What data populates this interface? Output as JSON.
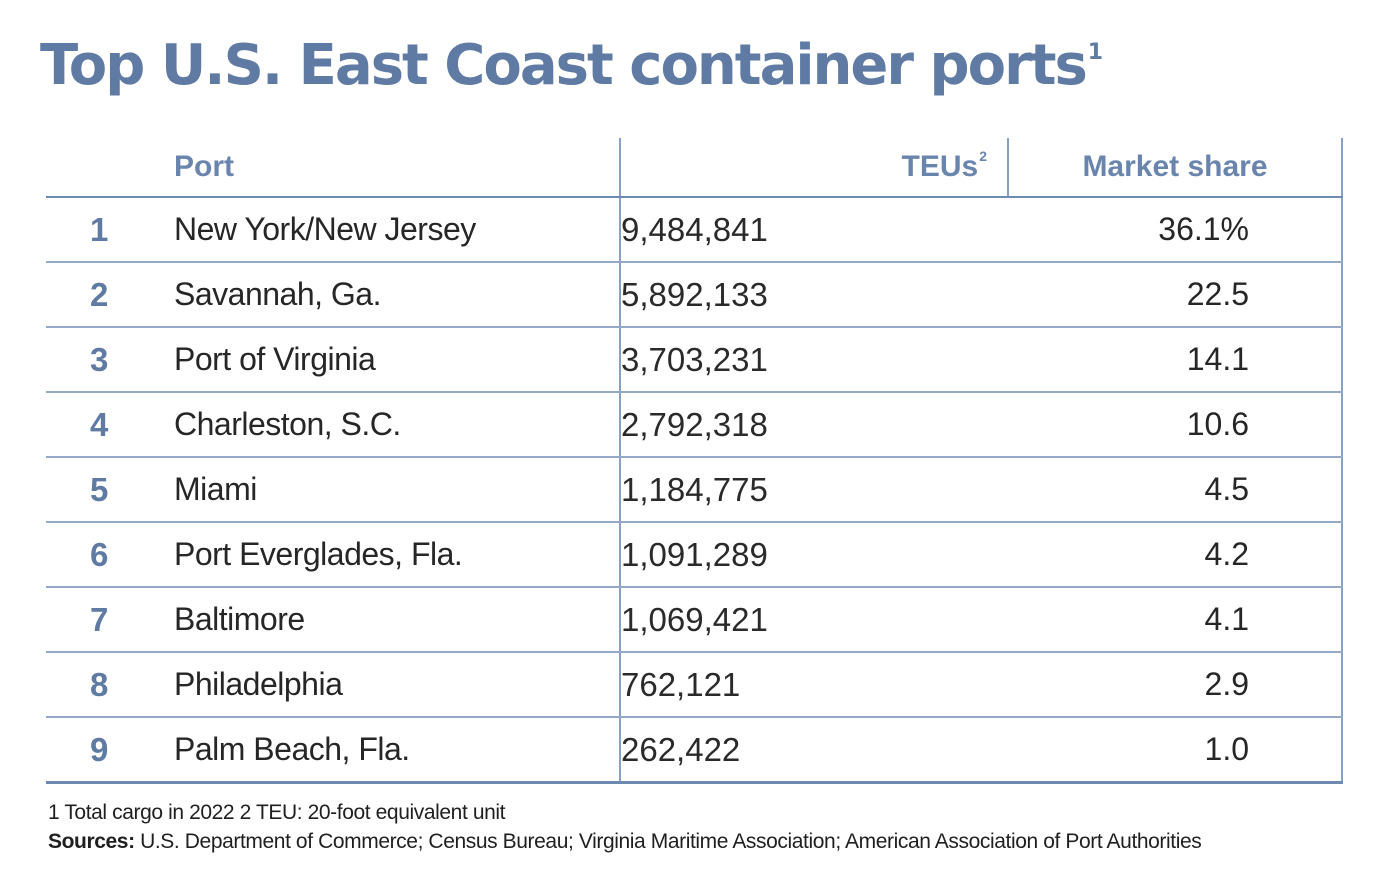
{
  "title": "Top U.S. East Coast container ports",
  "title_footnote_marker": "1",
  "colors": {
    "accent": "#5f7aa3",
    "header_text": "#6a85ad",
    "grid": "#94a8c7",
    "text": "#262626"
  },
  "columns": {
    "port": "Port",
    "teus": "TEUs",
    "teus_footnote_marker": "2",
    "share": "Market share"
  },
  "chart_data": {
    "type": "table",
    "title": "Top U.S. East Coast container ports",
    "headers": [
      "",
      "Port",
      "TEUs",
      "Market share"
    ],
    "rows": [
      {
        "rank": "1",
        "port": "New York/New Jersey",
        "teus": "9,484,841",
        "share": "36.1%"
      },
      {
        "rank": "2",
        "port": "Savannah, Ga.",
        "teus": "5,892,133",
        "share": "22.5"
      },
      {
        "rank": "3",
        "port": "Port of Virginia",
        "teus": "3,703,231",
        "share": "14.1"
      },
      {
        "rank": "4",
        "port": "Charleston, S.C.",
        "teus": "2,792,318",
        "share": "10.6"
      },
      {
        "rank": "5",
        "port": "Miami",
        "teus": "1,184,775",
        "share": "4.5"
      },
      {
        "rank": "6",
        "port": "Port Everglades, Fla.",
        "teus": "1,091,289",
        "share": "4.2"
      },
      {
        "rank": "7",
        "port": "Baltimore",
        "teus": "1,069,421",
        "share": "4.1"
      },
      {
        "rank": "8",
        "port": "Philadelphia",
        "teus": "762,121",
        "share": "2.9"
      },
      {
        "rank": "9",
        "port": "Palm Beach, Fla.",
        "teus": "262,422",
        "share": "1.0"
      }
    ]
  },
  "notes": {
    "footnotes": "1 Total cargo in 2022 2 TEU: 20-foot equivalent unit",
    "sources_label": "Sources:",
    "sources_text": " U.S. Department of Commerce; Census Bureau; Virginia Maritime Association; American Association of Port Authorities"
  }
}
